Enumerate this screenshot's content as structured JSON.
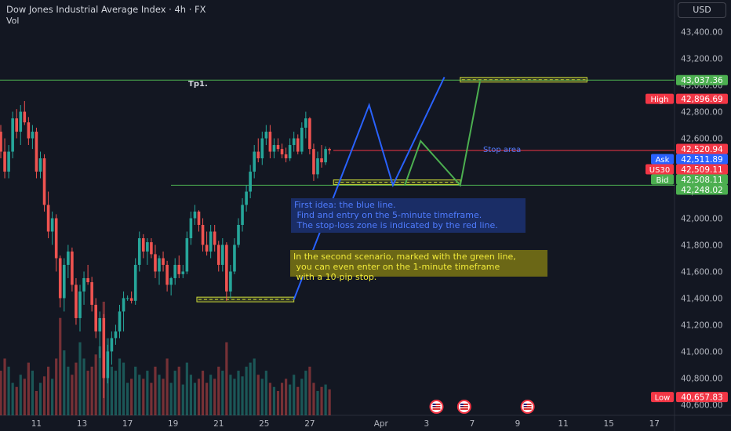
{
  "header": {
    "title": "Dow Jones Industrial Average Index · 4h · FX",
    "vol_label": "Vol",
    "currency": "USD"
  },
  "colors": {
    "background": "#131722",
    "up": "#26a69a",
    "down": "#ef5350",
    "blue_line": "#2962ff",
    "green_line": "#4caf50",
    "red_line": "#f23645",
    "level_line": "#4caf50"
  },
  "chart_data": {
    "type": "candlestick",
    "symbol": "US30",
    "timeframe": "4h",
    "ylim": [
      40520,
      43480
    ],
    "y_ticks": [
      {
        "value": 40600,
        "label": "40,600.00"
      },
      {
        "value": 40800,
        "label": "40,800.00"
      },
      {
        "value": 41000,
        "label": "41,000.00"
      },
      {
        "value": 41200,
        "label": "41,200.00"
      },
      {
        "value": 41400,
        "label": "41,400.00"
      },
      {
        "value": 41600,
        "label": "41,600.00"
      },
      {
        "value": 41800,
        "label": "41,800.00"
      },
      {
        "value": 42000,
        "label": "42,000.00"
      },
      {
        "value": 42200,
        "label": "42,200.00"
      },
      {
        "value": 42400,
        "label": "42,400.00"
      },
      {
        "value": 42600,
        "label": "42,600.00"
      },
      {
        "value": 42800,
        "label": "42,800.00"
      },
      {
        "value": 43000,
        "label": "43,000.00"
      },
      {
        "value": 43200,
        "label": "43,200.00"
      },
      {
        "value": 43400,
        "label": "43,400.00"
      }
    ],
    "x_ticks": [
      {
        "bar": 9,
        "label": "11"
      },
      {
        "bar": 20.5,
        "label": "13"
      },
      {
        "bar": 32,
        "label": "17"
      },
      {
        "bar": 43.5,
        "label": "19"
      },
      {
        "bar": 55,
        "label": "21"
      },
      {
        "bar": 66.5,
        "label": "25"
      },
      {
        "bar": 78,
        "label": "27"
      },
      {
        "bar": 96,
        "label": "Apr"
      },
      {
        "bar": 107.5,
        "label": "3"
      },
      {
        "bar": 119,
        "label": "7"
      },
      {
        "bar": 130.5,
        "label": "9"
      },
      {
        "bar": 142,
        "label": "11"
      },
      {
        "bar": 153.5,
        "label": "15"
      },
      {
        "bar": 165,
        "label": "17"
      }
    ],
    "candles": [
      [
        42650,
        42700,
        42450,
        42500
      ],
      [
        42500,
        42600,
        42300,
        42350
      ],
      [
        42350,
        42550,
        42300,
        42500
      ],
      [
        42500,
        42800,
        42450,
        42750
      ],
      [
        42750,
        42820,
        42600,
        42650
      ],
      [
        42650,
        42850,
        42550,
        42800
      ],
      [
        42800,
        42880,
        42700,
        42720
      ],
      [
        42720,
        42760,
        42550,
        42600
      ],
      [
        42600,
        42700,
        42520,
        42650
      ],
      [
        42650,
        42680,
        42300,
        42350
      ],
      [
        42350,
        42500,
        42300,
        42450
      ],
      [
        42450,
        42480,
        42050,
        42100
      ],
      [
        42100,
        42200,
        41850,
        41900
      ],
      [
        41900,
        42050,
        41800,
        42000
      ],
      [
        42000,
        42030,
        41600,
        41700
      ],
      [
        41700,
        41720,
        41330,
        41400
      ],
      [
        41400,
        41700,
        41300,
        41650
      ],
      [
        41650,
        41800,
        41550,
        41750
      ],
      [
        41750,
        41780,
        41450,
        41500
      ],
      [
        41500,
        41550,
        41200,
        41250
      ],
      [
        41250,
        41500,
        41150,
        41450
      ],
      [
        41450,
        41600,
        41350,
        41550
      ],
      [
        41550,
        41650,
        41500,
        41520
      ],
      [
        41520,
        41560,
        41300,
        41350
      ],
      [
        41350,
        41400,
        41100,
        41150
      ],
      [
        41150,
        41300,
        40950,
        41250
      ],
      [
        41250,
        41280,
        40650,
        40800
      ],
      [
        40800,
        41050,
        40760,
        41000
      ],
      [
        41000,
        41150,
        40900,
        41100
      ],
      [
        41100,
        41200,
        41050,
        41150
      ],
      [
        41150,
        41350,
        41100,
        41300
      ],
      [
        41300,
        41450,
        41150,
        41400
      ],
      [
        41400,
        41420,
        41380,
        41400
      ],
      [
        41400,
        41450,
        41360,
        41380
      ],
      [
        41380,
        41700,
        41350,
        41650
      ],
      [
        41650,
        41900,
        41600,
        41850
      ],
      [
        41850,
        41880,
        41700,
        41750
      ],
      [
        41750,
        41850,
        41650,
        41820
      ],
      [
        41820,
        41850,
        41700,
        41730
      ],
      [
        41730,
        41800,
        41550,
        41600
      ],
      [
        41600,
        41720,
        41500,
        41700
      ],
      [
        41700,
        41750,
        41600,
        41650
      ],
      [
        41650,
        41680,
        41450,
        41500
      ],
      [
        41500,
        41560,
        41420,
        41550
      ],
      [
        41550,
        41700,
        41500,
        41650
      ],
      [
        41650,
        41720,
        41550,
        41580
      ],
      [
        41580,
        41650,
        41550,
        41600
      ],
      [
        41600,
        41900,
        41580,
        41850
      ],
      [
        41850,
        42050,
        41800,
        42000
      ],
      [
        42000,
        42100,
        41950,
        42050
      ],
      [
        42050,
        42060,
        41900,
        41950
      ],
      [
        41950,
        42000,
        41750,
        41800
      ],
      [
        41800,
        41900,
        41720,
        41750
      ],
      [
        41750,
        41950,
        41700,
        41900
      ],
      [
        41900,
        41950,
        41750,
        41800
      ],
      [
        41800,
        41830,
        41600,
        41650
      ],
      [
        41650,
        41850,
        41600,
        41800
      ],
      [
        41800,
        41820,
        41380,
        41450
      ],
      [
        41450,
        41650,
        41400,
        41600
      ],
      [
        41600,
        41850,
        41580,
        41800
      ],
      [
        41800,
        42000,
        41780,
        41950
      ],
      [
        41950,
        42150,
        41900,
        42100
      ],
      [
        42100,
        42250,
        42050,
        42200
      ],
      [
        42200,
        42400,
        42150,
        42350
      ],
      [
        42350,
        42550,
        42300,
        42500
      ],
      [
        42500,
        42600,
        42420,
        42450
      ],
      [
        42450,
        42650,
        42400,
        42600
      ],
      [
        42600,
        42700,
        42550,
        42650
      ],
      [
        42650,
        42700,
        42450,
        42500
      ],
      [
        42500,
        42600,
        42450,
        42550
      ],
      [
        42550,
        42600,
        42500,
        42520
      ],
      [
        42520,
        42560,
        42450,
        42480
      ],
      [
        42480,
        42530,
        42420,
        42450
      ],
      [
        42450,
        42600,
        42430,
        42550
      ],
      [
        42550,
        42650,
        42500,
        42600
      ],
      [
        42600,
        42630,
        42480,
        42500
      ],
      [
        42500,
        42720,
        42480,
        42680
      ],
      [
        42680,
        42800,
        42600,
        42750
      ],
      [
        42750,
        42760,
        42480,
        42520
      ],
      [
        42520,
        42560,
        42280,
        42330
      ],
      [
        42330,
        42500,
        42300,
        42450
      ],
      [
        42450,
        42550,
        42380,
        42420
      ],
      [
        42420,
        42540,
        42400,
        42520
      ],
      [
        42520,
        42530,
        42480,
        42510
      ]
    ],
    "volumes": [
      55,
      70,
      60,
      40,
      35,
      50,
      45,
      65,
      55,
      30,
      40,
      48,
      60,
      45,
      70,
      120,
      80,
      60,
      50,
      65,
      90,
      70,
      55,
      60,
      75,
      85,
      140,
      95,
      60,
      55,
      70,
      65,
      40,
      45,
      60,
      50,
      45,
      55,
      40,
      60,
      50,
      45,
      70,
      40,
      55,
      60,
      38,
      65,
      50,
      40,
      45,
      55,
      40,
      50,
      45,
      60,
      55,
      90,
      50,
      45,
      55,
      48,
      60,
      65,
      70,
      50,
      45,
      55,
      40,
      35,
      30,
      40,
      45,
      38,
      50,
      35,
      45,
      55,
      60,
      40,
      30,
      35,
      38,
      32
    ],
    "levels": {
      "tp1": {
        "value": 43037.36,
        "label": "43,037.36"
      },
      "entry_support": {
        "value": 42248.02,
        "label": "42,248.02"
      },
      "stop_line": {
        "value": 42509.11
      }
    },
    "price_labels": [
      {
        "kind": "high",
        "tag": "High",
        "value": 42896.69,
        "label": "42,896.69",
        "color": "#f23645"
      },
      {
        "kind": "last",
        "tag": "",
        "value": 42520.94,
        "label": "42,520.94",
        "color": "#f23645"
      },
      {
        "kind": "ask",
        "tag": "Ask",
        "value": 42511.89,
        "label": "42,511.89",
        "color": "#2962ff"
      },
      {
        "kind": "symbol",
        "tag": "US30",
        "value": 42509.11,
        "label": "42,509.11",
        "color": "#f23645"
      },
      {
        "kind": "bid",
        "tag": "Bid",
        "value": 42508.11,
        "label": "42,508.11",
        "color": "#4caf50"
      },
      {
        "kind": "tp",
        "tag": "",
        "value": 43037.36,
        "label": "43,037.36",
        "color": "#4caf50"
      },
      {
        "kind": "support",
        "tag": "",
        "value": 42248.02,
        "label": "42,248.02",
        "color": "#4caf50"
      },
      {
        "kind": "low",
        "tag": "Low",
        "value": 40657.83,
        "label": "40,657.83",
        "color": "#f23645"
      }
    ],
    "annotations": {
      "tp1_label": "Tp1.",
      "stop_area_label": "Stop area",
      "blue_note": "First idea: the blue line.\n Find and entry on the 5-minute timeframe.\n The stop-loss zone is indicated by the red line.",
      "yellow_note": "In the second scenario, marked with the green line,\n you can even enter on the 1-minute timeframe\n with a 10-pip stop."
    },
    "blue_path": [
      [
        74,
        41390
      ],
      [
        93,
        42850
      ],
      [
        99,
        42248
      ],
      [
        112,
        43060
      ]
    ],
    "green_path": [
      [
        102,
        42248
      ],
      [
        106,
        42580
      ],
      [
        116,
        42248
      ],
      [
        121,
        43030
      ]
    ],
    "zones": [
      {
        "from_bar": 49.5,
        "to_bar": 74,
        "value": 41390
      },
      {
        "from_bar": 84,
        "to_bar": 116,
        "value": 42270
      },
      {
        "from_bar": 116,
        "to_bar": 148,
        "value": 43040
      }
    ],
    "event_flags": [
      {
        "bar": 110,
        "label": "US"
      },
      {
        "bar": 117,
        "label": "US"
      },
      {
        "bar": 133,
        "label": "US"
      }
    ]
  }
}
